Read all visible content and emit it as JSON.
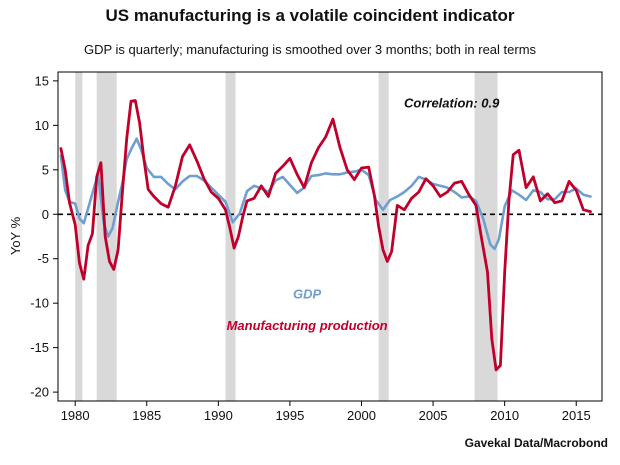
{
  "title": "US manufacturing is a volatile coincident indicator",
  "subtitle": "GDP is quarterly; manufacturing is smoothed over 3 months; both in real terms",
  "source": "Gavekal Data/Macrobond",
  "colors": {
    "gdp": "#6f9fd0",
    "manufacturing": "#c0002a",
    "recession": "#d9d9d9",
    "zero_line": "#000000"
  },
  "chart_data": {
    "type": "line",
    "title": "US manufacturing is a volatile coincident indicator",
    "subtitle": "GDP is quarterly; manufacturing is smoothed over 3 months; both in real terms",
    "ylabel": "YoY %",
    "xlabel": "",
    "xlim": [
      1978.8,
      2016.8
    ],
    "ylim": [
      -21,
      16
    ],
    "x_ticks": [
      1980,
      1985,
      1990,
      1995,
      2000,
      2005,
      2010,
      2015
    ],
    "y_ticks": [
      15,
      10,
      5,
      0,
      -5,
      -10,
      -15,
      -20
    ],
    "zero_line": "dashed",
    "grid": false,
    "recessions": [
      [
        1980.0,
        1980.5
      ],
      [
        1981.5,
        1982.9
      ],
      [
        1990.5,
        1991.2
      ],
      [
        2001.2,
        2001.9
      ],
      [
        2007.9,
        2009.5
      ]
    ],
    "annotations": [
      {
        "text": "Correlation: 0.9",
        "x": 2006.3,
        "y": 12.0
      },
      {
        "text": "GDP",
        "x": 1996.2,
        "y": -9.5
      },
      {
        "text": "Manufacturing production",
        "x": 1996.2,
        "y": -13.0
      }
    ],
    "series": [
      {
        "name": "GDP",
        "x": [
          1979.0,
          1979.3,
          1979.6,
          1980.0,
          1980.3,
          1980.6,
          1981.0,
          1981.3,
          1981.6,
          1982.0,
          1982.3,
          1982.6,
          1983.0,
          1983.3,
          1983.6,
          1984.0,
          1984.3,
          1984.6,
          1985.0,
          1985.5,
          1986.0,
          1986.5,
          1987.0,
          1987.5,
          1988.0,
          1988.5,
          1989.0,
          1989.5,
          1990.0,
          1990.5,
          1991.0,
          1991.5,
          1992.0,
          1992.5,
          1993.0,
          1993.5,
          1994.0,
          1994.5,
          1995.0,
          1995.5,
          1996.0,
          1996.5,
          1997.0,
          1997.5,
          1998.0,
          1998.5,
          1999.0,
          1999.5,
          2000.0,
          2000.5,
          2001.0,
          2001.5,
          2002.0,
          2002.5,
          2003.0,
          2003.5,
          2004.0,
          2004.5,
          2005.0,
          2005.5,
          2006.0,
          2006.5,
          2007.0,
          2007.5,
          2008.0,
          2008.5,
          2009.0,
          2009.3,
          2009.6,
          2010.0,
          2010.5,
          2011.0,
          2011.5,
          2012.0,
          2012.5,
          2013.0,
          2013.5,
          2014.0,
          2014.5,
          2015.0,
          2015.5,
          2016.0
        ],
        "values": [
          6.6,
          2.7,
          1.4,
          1.2,
          -0.5,
          -1.0,
          1.2,
          2.9,
          4.5,
          -1.0,
          -2.5,
          -1.6,
          1.4,
          3.5,
          6.2,
          7.6,
          8.5,
          7.3,
          5.2,
          4.2,
          4.2,
          3.4,
          2.8,
          3.7,
          4.3,
          4.3,
          3.8,
          3.0,
          2.2,
          1.4,
          -0.9,
          0.1,
          2.6,
          3.2,
          2.9,
          2.5,
          3.8,
          4.2,
          3.3,
          2.4,
          3.0,
          4.3,
          4.4,
          4.6,
          4.5,
          4.5,
          4.7,
          4.8,
          5.0,
          4.4,
          1.6,
          0.5,
          1.6,
          2.0,
          2.5,
          3.2,
          4.2,
          3.9,
          3.4,
          3.2,
          3.0,
          2.5,
          1.9,
          2.0,
          1.5,
          -0.5,
          -3.4,
          -3.9,
          -2.8,
          0.9,
          2.7,
          2.2,
          1.6,
          2.7,
          2.5,
          1.7,
          1.7,
          2.5,
          2.5,
          2.9,
          2.2,
          2.0
        ]
      },
      {
        "name": "Manufacturing production",
        "x": [
          1979.0,
          1979.3,
          1979.6,
          1980.0,
          1980.3,
          1980.6,
          1980.9,
          1981.2,
          1981.5,
          1981.8,
          1982.1,
          1982.4,
          1982.7,
          1983.0,
          1983.3,
          1983.6,
          1983.9,
          1984.2,
          1984.5,
          1984.8,
          1985.1,
          1985.5,
          1986.0,
          1986.5,
          1987.0,
          1987.5,
          1988.0,
          1988.5,
          1989.0,
          1989.5,
          1990.0,
          1990.5,
          1990.8,
          1991.1,
          1991.4,
          1991.7,
          1992.0,
          1992.5,
          1993.0,
          1993.5,
          1994.0,
          1994.5,
          1995.0,
          1995.5,
          1996.0,
          1996.5,
          1997.0,
          1997.5,
          1998.0,
          1998.5,
          1999.0,
          1999.5,
          2000.0,
          2000.5,
          2000.9,
          2001.2,
          2001.5,
          2001.8,
          2002.1,
          2002.5,
          2003.0,
          2003.5,
          2004.0,
          2004.5,
          2005.0,
          2005.5,
          2006.0,
          2006.5,
          2007.0,
          2007.5,
          2008.0,
          2008.4,
          2008.8,
          2009.1,
          2009.4,
          2009.7,
          2010.0,
          2010.3,
          2010.6,
          2011.0,
          2011.5,
          2012.0,
          2012.5,
          2013.0,
          2013.5,
          2014.0,
          2014.5,
          2015.0,
          2015.5,
          2016.0
        ],
        "values": [
          7.4,
          5.0,
          1.3,
          -1.2,
          -5.5,
          -7.3,
          -3.5,
          -2.2,
          4.2,
          5.8,
          -2.5,
          -5.3,
          -6.2,
          -4.0,
          2.5,
          8.5,
          12.7,
          12.8,
          10.3,
          6.2,
          2.8,
          2.0,
          1.2,
          0.8,
          3.2,
          6.5,
          7.8,
          6.0,
          4.0,
          2.5,
          1.8,
          0.5,
          -1.5,
          -3.8,
          -2.5,
          -0.3,
          1.5,
          1.8,
          3.2,
          2.0,
          4.6,
          5.4,
          6.3,
          4.5,
          3.0,
          5.8,
          7.5,
          8.7,
          10.7,
          7.5,
          5.0,
          3.9,
          5.2,
          5.3,
          2.1,
          -1.4,
          -4.0,
          -5.3,
          -4.2,
          1.0,
          0.5,
          1.8,
          2.5,
          4.0,
          3.2,
          2.0,
          2.5,
          3.5,
          3.7,
          2.2,
          1.0,
          -2.8,
          -6.5,
          -14.0,
          -17.5,
          -17.0,
          -6.5,
          1.5,
          6.7,
          7.2,
          3.0,
          4.2,
          1.5,
          2.3,
          1.3,
          1.5,
          3.7,
          2.7,
          0.5,
          0.3
        ]
      }
    ]
  }
}
